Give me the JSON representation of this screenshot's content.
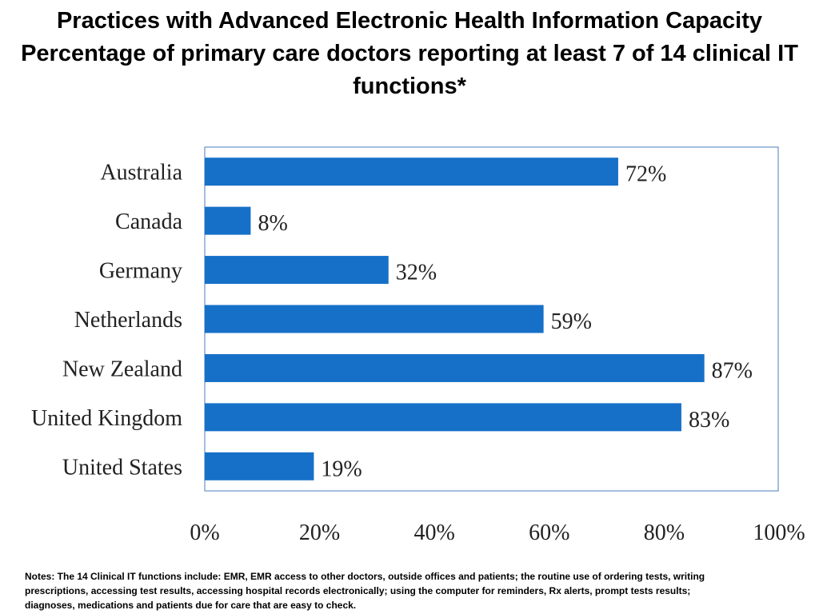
{
  "title": {
    "line1": "Practices with Advanced Electronic Health  Information Capacity",
    "line2": "Percentage of primary care doctors reporting at least 7 of 14 clinical IT functions*"
  },
  "chart_data": {
    "type": "bar",
    "orientation": "horizontal",
    "categories": [
      "Australia",
      "Canada",
      "Germany",
      "Netherlands",
      "New Zealand",
      "United Kingdom",
      "United States"
    ],
    "values": [
      72,
      8,
      32,
      59,
      87,
      83,
      19
    ],
    "value_labels": [
      "72%",
      "8%",
      "32%",
      "59%",
      "87%",
      "83%",
      "19%"
    ],
    "xlim": [
      0,
      100
    ],
    "x_ticks": [
      0,
      20,
      40,
      60,
      80,
      100
    ],
    "x_tick_labels": [
      "0%",
      "20%",
      "40%",
      "60%",
      "80%",
      "100%"
    ],
    "grid": false,
    "bar_color": "#1670C8",
    "frame_color": "#4A7EBB"
  },
  "notes": "Notes: The 14 Clinical IT functions include: EMR, EMR access to other doctors, outside offices and patients; the routine use of ordering tests, writing prescriptions, accessing test results, accessing hospital records electronically; using the computer for reminders, Rx alerts, prompt tests results; diagnoses, medications and patients due for care that are easy to check."
}
